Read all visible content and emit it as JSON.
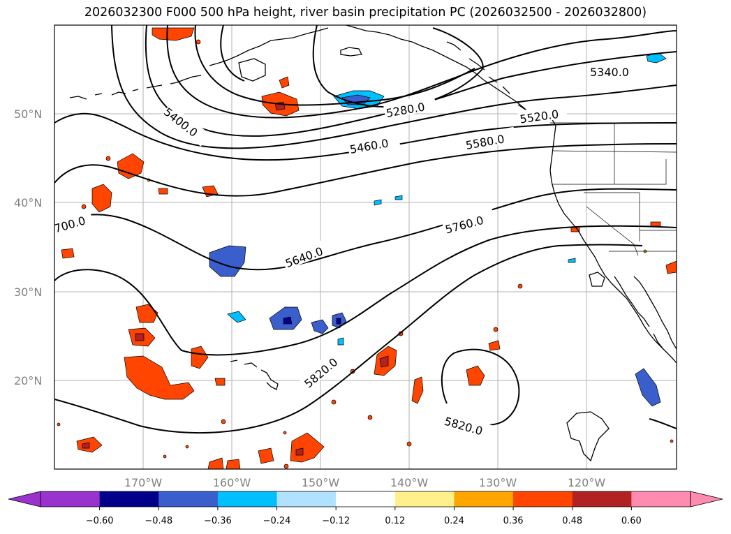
{
  "title": "2026032300 F000 500 hPa height, river basin precipitation PC (2026032500 - 2026032800)",
  "latitude_labels": [
    "50°N",
    "40°N",
    "30°N",
    "20°N"
  ],
  "longitude_labels": [
    "170°W",
    "160°W",
    "150°W",
    "140°W",
    "130°W",
    "120°W"
  ],
  "contour_labels": [
    "5340.0",
    "5280.0",
    "5400.0",
    "5520.0",
    "5460.0",
    "5580.0",
    "700.0",
    "5760.0",
    "5640.0",
    "5820.0",
    "5820.0"
  ],
  "colorbar": {
    "ticks": [
      "−0.60",
      "−0.48",
      "−0.36",
      "−0.24",
      "−0.12",
      "0.12",
      "0.24",
      "0.36",
      "0.48",
      "0.60"
    ],
    "colors": [
      "#9a32cd",
      "#00008b",
      "#3a5fcd",
      "#00bfff",
      "#b0e2ff",
      "#ffffff",
      "#fff08c",
      "#ffa500",
      "#ff4500",
      "#b22222",
      "#ff8cb0"
    ]
  },
  "colors": {
    "negative_strong": "#3a5fcd",
    "positive_strong": "#ff4500",
    "contour": "#000000"
  }
}
